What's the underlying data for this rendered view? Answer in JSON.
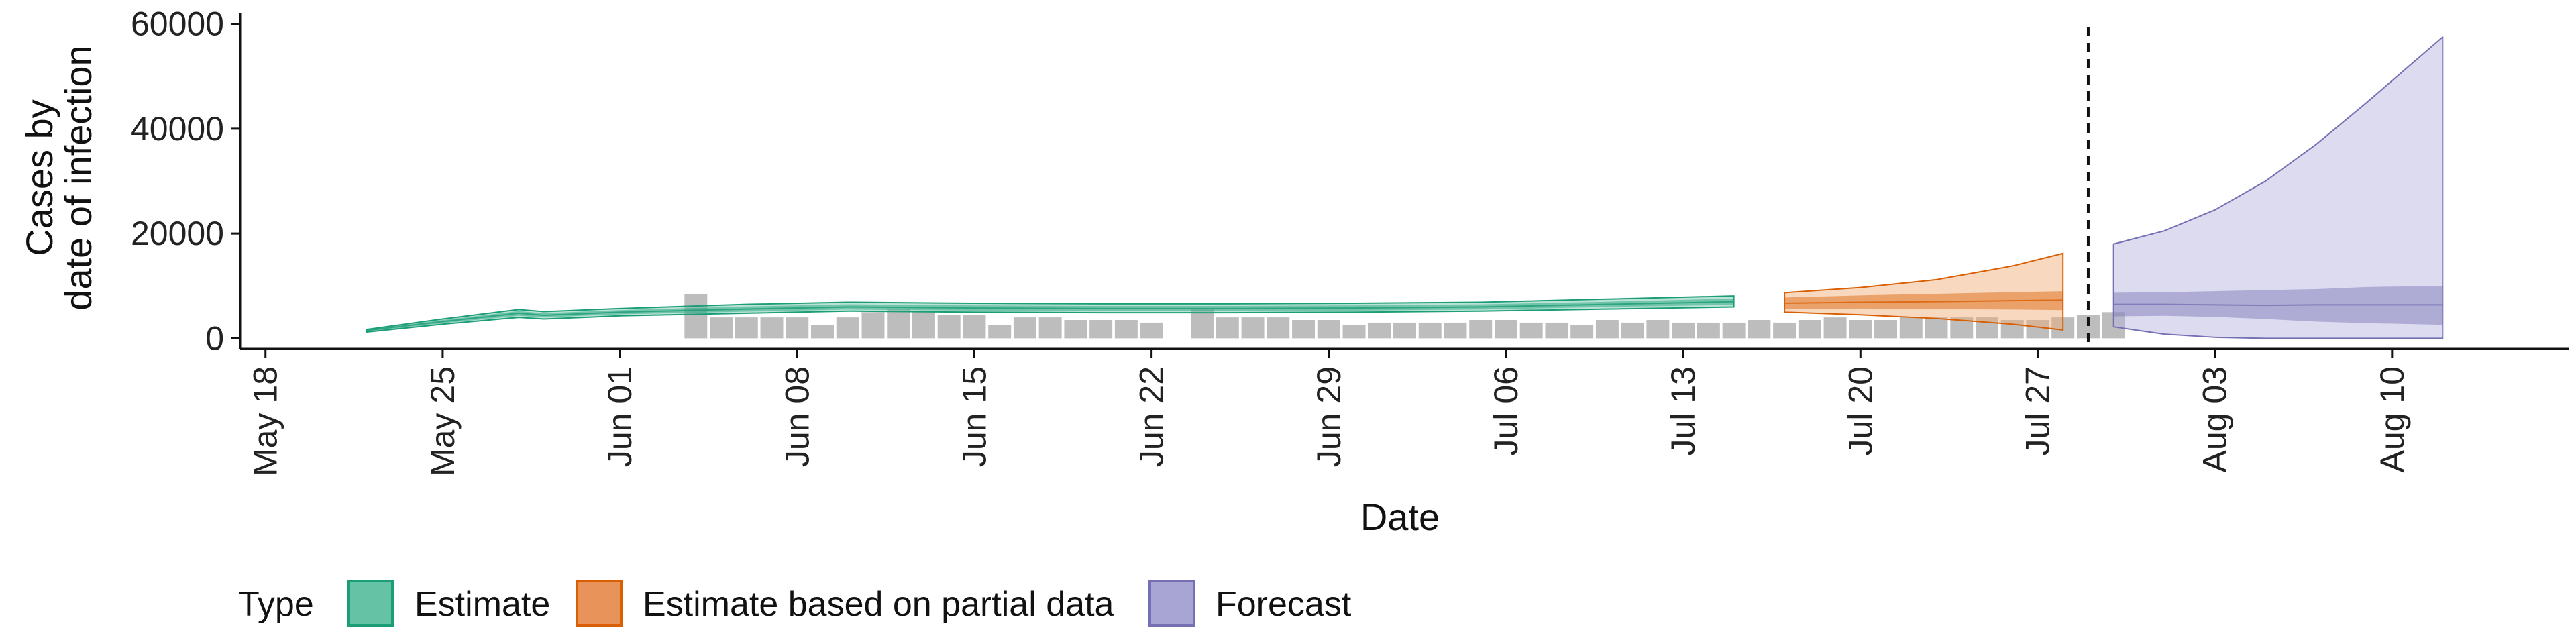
{
  "chart_data": {
    "type": "area",
    "xlabel": "Date",
    "ylabel_lines": [
      "Cases by",
      "date of infection"
    ],
    "ylim": [
      -2000,
      62000
    ],
    "xlim": [
      "2020-05-17",
      "2020-08-17"
    ],
    "yticks": [
      0,
      20000,
      40000,
      60000
    ],
    "ytick_labels": [
      "0",
      "20000",
      "40000",
      "60000"
    ],
    "xticks": [
      "2020-05-18",
      "2020-05-25",
      "2020-06-01",
      "2020-06-08",
      "2020-06-15",
      "2020-06-22",
      "2020-06-29",
      "2020-07-06",
      "2020-07-13",
      "2020-07-20",
      "2020-07-27",
      "2020-08-03",
      "2020-08-10"
    ],
    "xtick_labels": [
      "May 18",
      "May 25",
      "Jun 01",
      "Jun 08",
      "Jun 15",
      "Jun 22",
      "Jun 29",
      "Jul 06",
      "Jul 13",
      "Jul 20",
      "Jul 27",
      "Aug 03",
      "Aug 10"
    ],
    "vline_date": "2020-07-29",
    "legend": {
      "title": "Type",
      "position": "bottom",
      "items": [
        {
          "label": "Estimate",
          "fill": "#66c2a5",
          "stroke": "#1b9e77"
        },
        {
          "label": "Estimate based on partial data",
          "fill": "#e8935a",
          "stroke": "#d95f02"
        },
        {
          "label": "Forecast",
          "fill": "#a8a4d4",
          "stroke": "#7570b3"
        }
      ]
    },
    "colors": {
      "estimate": "#1b9e77",
      "partial": "#d95f02",
      "forecast": "#7570b3",
      "reported_bars": "#bdbdbd"
    },
    "reported_cases": {
      "start_date": "2020-06-04",
      "values": [
        8500,
        4000,
        4000,
        4000,
        4000,
        2500,
        4000,
        5000,
        5500,
        5000,
        4500,
        4500,
        2500,
        4000,
        4000,
        3500,
        3500,
        3500,
        3000,
        0,
        5500,
        4000,
        4000,
        4000,
        3500,
        3500,
        2500,
        3000,
        3000,
        3000,
        3000,
        3500,
        3500,
        3000,
        3000,
        2500,
        3500,
        3000,
        3500,
        3000,
        3000,
        3000,
        3500,
        3000,
        3500,
        4000,
        3500,
        3500,
        4000,
        4000,
        4000,
        4000,
        3500,
        3500,
        4000,
        4500,
        5000
      ]
    },
    "series": [
      {
        "name": "Estimate",
        "dates": [
          "2020-05-22",
          "2020-05-25",
          "2020-05-28",
          "2020-05-29",
          "2020-06-01",
          "2020-06-06",
          "2020-06-10",
          "2020-06-15",
          "2020-06-20",
          "2020-06-25",
          "2020-06-30",
          "2020-07-05",
          "2020-07-10",
          "2020-07-15"
        ],
        "median": [
          1500,
          3200,
          4800,
          4400,
          5000,
          5600,
          6000,
          5800,
          5700,
          5700,
          5800,
          6000,
          6500,
          7000
        ],
        "lower50": [
          1300,
          2900,
          4300,
          4000,
          4600,
          5100,
          5500,
          5300,
          5200,
          5200,
          5300,
          5500,
          6000,
          6400
        ],
        "upper50": [
          1600,
          3500,
          5200,
          4800,
          5400,
          6100,
          6500,
          6300,
          6200,
          6200,
          6300,
          6500,
          7000,
          7600
        ],
        "lower90": [
          1200,
          2700,
          4000,
          3700,
          4300,
          4800,
          5200,
          5000,
          4900,
          4900,
          5000,
          5200,
          5600,
          6000
        ],
        "upper90": [
          1700,
          3700,
          5500,
          5100,
          5700,
          6500,
          6900,
          6700,
          6600,
          6600,
          6700,
          6900,
          7500,
          8100
        ]
      },
      {
        "name": "Estimate based on partial data",
        "dates": [
          "2020-07-17",
          "2020-07-20",
          "2020-07-23",
          "2020-07-26",
          "2020-07-28"
        ],
        "median": [
          6700,
          6900,
          7000,
          7200,
          7300
        ],
        "lower50": [
          5600,
          5700,
          5600,
          5500,
          5400
        ],
        "upper50": [
          7800,
          8200,
          8500,
          8800,
          9000
        ],
        "lower90": [
          5000,
          4500,
          3800,
          2700,
          1600
        ],
        "upper90": [
          8700,
          9700,
          11200,
          13800,
          16200
        ]
      },
      {
        "name": "Forecast",
        "dates": [
          "2020-07-30",
          "2020-08-01",
          "2020-08-03",
          "2020-08-05",
          "2020-08-07",
          "2020-08-09",
          "2020-08-12"
        ],
        "median": [
          6500,
          6500,
          6400,
          6300,
          6400,
          6400,
          6400
        ],
        "lower50": [
          4200,
          4300,
          4100,
          3700,
          3200,
          2900,
          2600
        ],
        "upper50": [
          8700,
          8800,
          9000,
          9200,
          9400,
          9800,
          10000
        ],
        "lower90": [
          2200,
          800,
          200,
          0,
          0,
          0,
          0
        ],
        "upper90": [
          18000,
          20500,
          24500,
          30000,
          37000,
          45000,
          57500
        ]
      }
    ]
  }
}
